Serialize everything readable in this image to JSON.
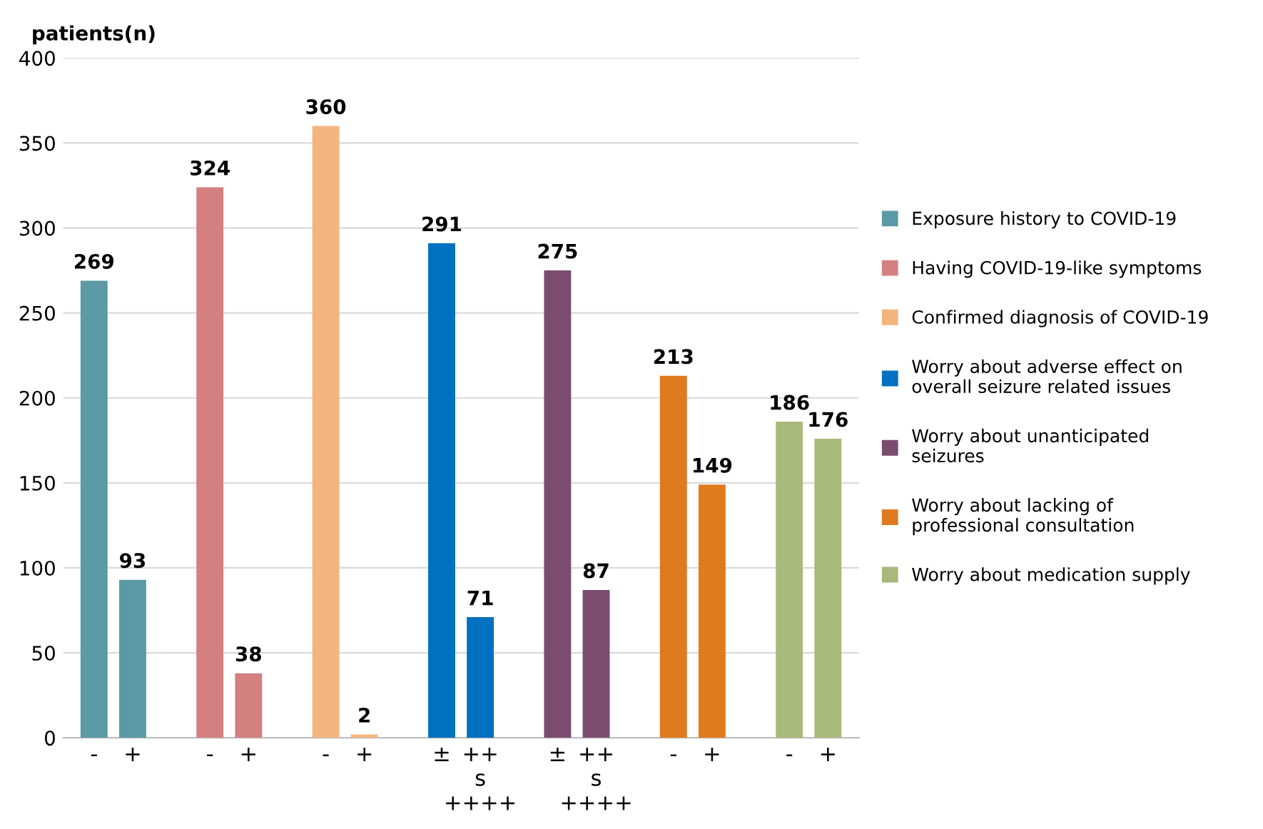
{
  "chart_data": {
    "type": "bar",
    "ylabel": "patients(n)",
    "categories": [
      "-",
      "+",
      "-",
      "+",
      "-",
      "+",
      "±",
      "++\ns\n++++",
      "±",
      "++\ns\n++++",
      "-",
      "+",
      "-",
      "+"
    ],
    "series": [
      {
        "name": "Exposure history to COVID-19",
        "color": "#5b9aa5",
        "values": [
          269,
          93,
          null,
          null,
          null,
          null,
          null,
          null,
          null,
          null,
          null,
          null,
          null,
          null
        ]
      },
      {
        "name": "Having COVID-19-like symptoms",
        "color": "#d48080",
        "values": [
          null,
          null,
          324,
          38,
          null,
          null,
          null,
          null,
          null,
          null,
          null,
          null,
          null,
          null
        ]
      },
      {
        "name": "Confirmed diagnosis of COVID-19",
        "color": "#f4b47e",
        "values": [
          null,
          null,
          null,
          null,
          360,
          2,
          null,
          null,
          null,
          null,
          null,
          null,
          null,
          null
        ]
      },
      {
        "name": "Worry about adverse effect on\noverall seizure related issues",
        "color": "#0070c0",
        "values": [
          null,
          null,
          null,
          null,
          null,
          null,
          291,
          71,
          null,
          null,
          null,
          null,
          null,
          null
        ]
      },
      {
        "name": "Worry about unanticipated\nseizures",
        "color": "#7b4c70",
        "values": [
          null,
          null,
          null,
          null,
          null,
          null,
          null,
          null,
          275,
          87,
          null,
          null,
          null,
          null
        ]
      },
      {
        "name": "Worry about lacking of\nprofessional consultation",
        "color": "#e07a1f",
        "values": [
          null,
          null,
          null,
          null,
          null,
          null,
          null,
          null,
          null,
          null,
          213,
          149,
          null,
          null
        ]
      },
      {
        "name": "Worry about medication supply",
        "color": "#a9b87b",
        "values": [
          null,
          null,
          null,
          null,
          null,
          null,
          null,
          null,
          null,
          null,
          null,
          null,
          186,
          176
        ]
      }
    ],
    "ylim": [
      0,
      400
    ],
    "yticks": [
      0,
      50,
      100,
      150,
      200,
      250,
      300,
      350,
      400
    ],
    "grid": "y",
    "legend": "right",
    "data_labels": true
  }
}
